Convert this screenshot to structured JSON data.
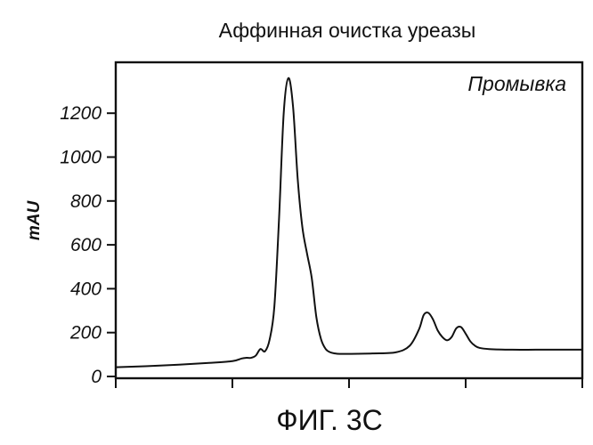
{
  "chart_data": {
    "type": "line",
    "title": "Аффинная очистка уреазы",
    "ylabel": "mAU",
    "xlabel": "",
    "annotation": "Промывка",
    "caption": "ФИГ. 3С",
    "ylim": [
      0,
      1400
    ],
    "xlim": [
      0,
      100
    ],
    "yticks": [
      0,
      200,
      400,
      600,
      800,
      1000,
      1200
    ],
    "ytick_labels": [
      "0",
      "200",
      "400",
      "600",
      "800",
      "1000",
      "1200"
    ],
    "xticks": [
      0,
      25,
      50,
      75,
      100
    ],
    "grid": false,
    "series": [
      {
        "x": [
          0,
          10,
          20,
          25,
          27,
          28,
          29,
          30,
          31,
          32,
          33,
          34,
          35,
          36,
          37,
          38,
          39,
          40,
          41,
          42,
          43,
          44,
          45,
          46,
          47,
          48,
          50,
          55,
          60,
          63,
          65,
          66,
          67,
          68,
          69,
          70,
          71,
          72,
          73,
          74,
          75,
          76,
          77,
          78,
          80,
          85,
          90,
          95,
          100
        ],
        "y": [
          42,
          50,
          62,
          70,
          82,
          85,
          85,
          95,
          125,
          115,
          170,
          320,
          720,
          1200,
          1360,
          1230,
          900,
          680,
          560,
          450,
          270,
          170,
          125,
          110,
          105,
          103,
          103,
          105,
          110,
          140,
          215,
          280,
          290,
          260,
          210,
          180,
          165,
          180,
          220,
          225,
          195,
          160,
          140,
          130,
          125,
          122,
          122,
          122,
          122
        ]
      }
    ]
  }
}
